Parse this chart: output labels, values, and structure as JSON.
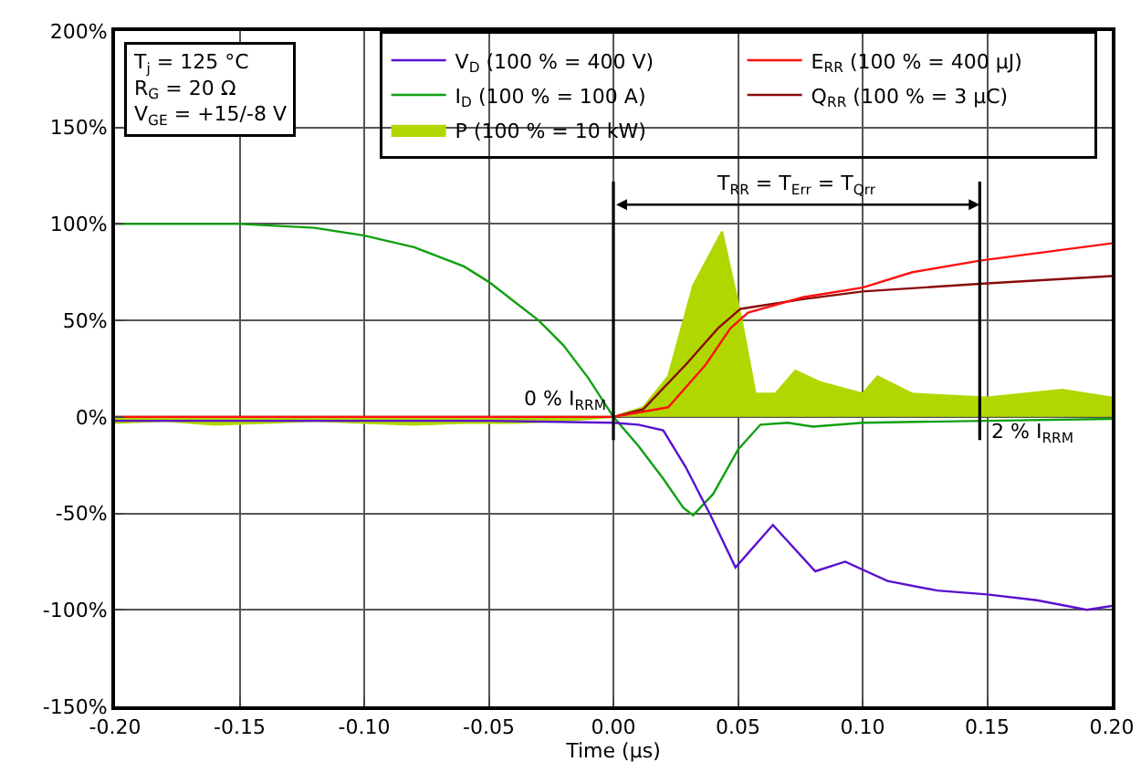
{
  "chart_data": {
    "type": "line",
    "xlabel": "Time (µs)",
    "xlim": [
      -0.2,
      0.2
    ],
    "ylim": [
      -150,
      200
    ],
    "xticks": [
      {
        "value": -0.2,
        "label": "-0.20"
      },
      {
        "value": -0.15,
        "label": "-0.15"
      },
      {
        "value": -0.1,
        "label": "-0.10"
      },
      {
        "value": -0.05,
        "label": "-0.05"
      },
      {
        "value": 0,
        "label": "0.00"
      },
      {
        "value": 0.05,
        "label": "0.05"
      },
      {
        "value": 0.1,
        "label": "0.10"
      },
      {
        "value": 0.15,
        "label": "0.15"
      },
      {
        "value": 0.2,
        "label": "0.20"
      }
    ],
    "yticks": [
      {
        "value": -150,
        "label": "-150%"
      },
      {
        "value": -100,
        "label": "-100%"
      },
      {
        "value": -50,
        "label": "-50%"
      },
      {
        "value": 0,
        "label": "0%"
      },
      {
        "value": 50,
        "label": "50%"
      },
      {
        "value": 100,
        "label": "100%"
      },
      {
        "value": 150,
        "label": "150%"
      },
      {
        "value": 200,
        "label": "200%"
      }
    ],
    "grid": true,
    "legend": "top right",
    "series": [
      {
        "name": "V$_{D}$ (100 % = 400 V)",
        "color": "#5a10d0",
        "x": [
          -0.2,
          -0.15,
          -0.1,
          -0.05,
          0,
          0.01,
          0.02,
          0.029,
          0.039,
          0.049,
          0.064,
          0.081,
          0.093,
          0.11,
          0.13,
          0.15,
          0.17,
          0.19,
          0.2
        ],
        "values": [
          -2,
          -2,
          -2,
          -2,
          -3,
          -4,
          -7,
          -26,
          -51,
          -78,
          -56,
          -80,
          -75,
          -85,
          -90,
          -92,
          -95,
          -100,
          -98
        ]
      },
      {
        "name": "I$_{D}$ (100 % = 100 A)",
        "color": "#10a010",
        "x": [
          -0.2,
          -0.15,
          -0.12,
          -0.1,
          -0.08,
          -0.06,
          -0.05,
          -0.04,
          -0.03,
          -0.02,
          -0.01,
          0,
          0.01,
          0.02,
          0.028,
          0.032,
          0.04,
          0.05,
          0.059,
          0.07,
          0.08,
          0.1,
          0.15,
          0.2
        ],
        "values": [
          100,
          100,
          98,
          94,
          88,
          78,
          70,
          60,
          50,
          37,
          20,
          0,
          -15,
          -32,
          -47,
          -51,
          -40,
          -17,
          -4,
          -3,
          -5,
          -3,
          -2,
          -1
        ]
      },
      {
        "name": "P (100 % = 10 kW)",
        "type": "area",
        "color": "#b0d800",
        "x": [
          -0.2,
          -0.18,
          -0.16,
          -0.14,
          -0.12,
          -0.1,
          -0.08,
          -0.06,
          -0.04,
          -0.02,
          0,
          0.012,
          0.022,
          0.032,
          0.0436,
          0.051,
          0.057,
          0.065,
          0.073,
          0.083,
          0.1,
          0.106,
          0.12,
          0.15,
          0.18,
          0.2
        ],
        "values": [
          -3,
          -2,
          -4,
          -3,
          -2,
          -3,
          -4,
          -3,
          -3,
          -2,
          0,
          5,
          21,
          68,
          96,
          53,
          12,
          12,
          24,
          18,
          12,
          21,
          12,
          10,
          14,
          10
        ]
      },
      {
        "name": "E$_{RR}$ (100 % = 400 µJ)",
        "color": "#ff1010",
        "x": [
          -0.2,
          0,
          0.022,
          0.037,
          0.047,
          0.054,
          0.076,
          0.1,
          0.12,
          0.147,
          0.2
        ],
        "values": [
          0,
          0,
          5,
          27,
          46,
          54,
          62,
          67,
          75,
          81,
          90
        ]
      },
      {
        "name": "Q$_{RR}$ (100 % = 3 µC)",
        "color": "#8b0a0a",
        "x": [
          -0.2,
          0,
          0.012,
          0.029,
          0.042,
          0.051,
          0.076,
          0.1,
          0.147,
          0.2
        ],
        "values": [
          0,
          0,
          4,
          27,
          46,
          56,
          61,
          65,
          69,
          73
        ]
      }
    ],
    "ref_lines": [
      {
        "axis": "x",
        "value": 0,
        "label": "0 % I$_{RRM}$"
      },
      {
        "axis": "x",
        "value": 0.147,
        "label": "2 % I$_{RRM}$"
      }
    ],
    "annotations": [
      "T$_{j}$ = 125 °C\nR$_{G}$ = 20 Ω\nV$_{GE}$ = +15/-8 V",
      "T$_{RR}$ = T$_{Err}$ = T$_{Qrr}$"
    ]
  }
}
